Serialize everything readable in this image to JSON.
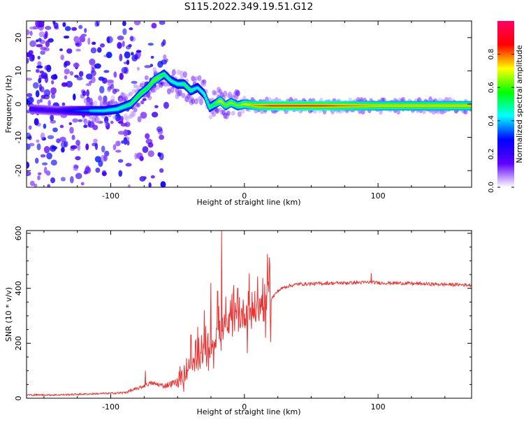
{
  "title": "S115.2022.349.19.51.G12",
  "chart_data": [
    {
      "type": "heatmap",
      "xlabel": "Height of straight line (km)",
      "ylabel": "Frequency (Hz)",
      "xlim": [
        -163,
        170
      ],
      "ylim": [
        -25,
        25
      ],
      "xticks": [
        -100,
        0,
        100
      ],
      "yticks": [
        -20,
        -10,
        0,
        10,
        20
      ],
      "colorbar": {
        "label": "Normalized spectral amplitude",
        "range": [
          0,
          1
        ],
        "ticks": [
          0.0,
          0.2,
          0.4,
          0.6,
          0.8
        ],
        "tick_labels": [
          "0.0",
          "0.2",
          "0.4",
          "0.6",
          "0.8"
        ],
        "colormap": [
          "#ffffff",
          "#6000ff",
          "#0000ff",
          "#00ffff",
          "#00ff00",
          "#ffff00",
          "#ff0000",
          "#ff0066"
        ]
      },
      "ridge": {
        "x": [
          -160,
          -140,
          -120,
          -105,
          -95,
          -85,
          -78,
          -72,
          -68,
          -64,
          -60,
          -55,
          -50,
          -45,
          -40,
          -35,
          -30,
          -26,
          -22,
          -18,
          -14,
          -10,
          -5,
          0,
          10,
          20,
          40,
          60,
          80,
          100,
          120,
          140,
          165
        ],
        "y": [
          -1.5,
          -2,
          -2,
          -2,
          -1.5,
          0,
          3,
          5,
          7,
          8,
          9,
          7,
          6,
          6,
          4,
          5,
          3,
          -1,
          0,
          1,
          -0.5,
          0.5,
          -0.5,
          0,
          -0.5,
          -0.5,
          -0.5,
          -0.5,
          -0.5,
          -0.5,
          -0.5,
          -0.5,
          -0.5
        ],
        "amplitude": [
          0.3,
          0.3,
          0.45,
          0.5,
          0.55,
          0.6,
          0.65,
          0.65,
          0.7,
          0.7,
          0.6,
          0.55,
          0.55,
          0.6,
          0.6,
          0.5,
          0.55,
          0.6,
          0.65,
          0.8,
          0.7,
          0.75,
          0.7,
          0.8,
          0.9,
          0.95,
          0.95,
          0.95,
          0.9,
          0.85,
          0.85,
          0.85,
          0.85
        ]
      }
    },
    {
      "type": "line",
      "xlabel": "Height of straight line (km)",
      "ylabel": "SNR (10 * v/v)",
      "xlim": [
        -163,
        170
      ],
      "ylim": [
        0,
        610
      ],
      "xticks": [
        -100,
        0,
        100
      ],
      "yticks": [
        0,
        200,
        400,
        600
      ],
      "color": "#ee3333",
      "series": [
        {
          "x": [
            -163,
            -140,
            -120,
            -100,
            -90,
            -80,
            -70,
            -60,
            -50,
            -45,
            -40,
            -35,
            -30,
            -25,
            -20,
            -17,
            -15,
            -10,
            0,
            10,
            20,
            25,
            30,
            40,
            60,
            80,
            95,
            100,
            120,
            140,
            160,
            170
          ],
          "y": [
            12,
            12,
            15,
            18,
            20,
            35,
            55,
            45,
            60,
            80,
            100,
            140,
            170,
            190,
            230,
            250,
            260,
            270,
            310,
            330,
            360,
            390,
            405,
            415,
            418,
            420,
            422,
            420,
            418,
            415,
            413,
            412
          ]
        }
      ],
      "spikes": [
        {
          "x": -17,
          "y": 610
        },
        {
          "x": -25,
          "y": 420
        },
        {
          "x": -30,
          "y": 320
        },
        {
          "x": -20,
          "y": 390
        },
        {
          "x": -35,
          "y": 260
        },
        {
          "x": -40,
          "y": 230
        },
        {
          "x": -74,
          "y": 100
        },
        {
          "x": -5,
          "y": 400
        },
        {
          "x": 3,
          "y": 390
        },
        {
          "x": 95,
          "y": 455
        }
      ]
    }
  ]
}
